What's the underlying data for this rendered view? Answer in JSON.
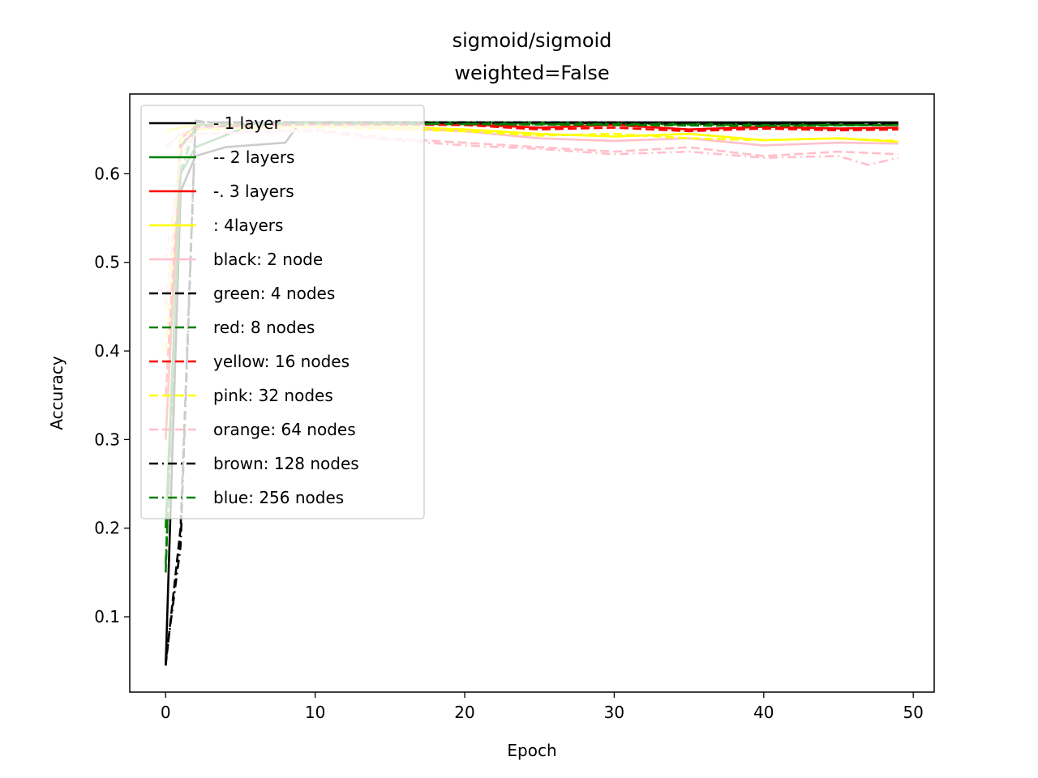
{
  "chart_data": {
    "type": "line",
    "title": "sigmoid/sigmoid",
    "subtitle": "weighted=False",
    "xlabel": "Epoch",
    "ylabel": "Accuracy",
    "xlim": [
      -2.4,
      51.4
    ],
    "ylim": [
      0.015,
      0.69
    ],
    "xticks": [
      0,
      10,
      20,
      30,
      40,
      50
    ],
    "yticks": [
      0.1,
      0.2,
      0.3,
      0.4,
      0.5,
      0.6
    ],
    "grid": false,
    "legend_position": "top-left",
    "legend": [
      {
        "label": "- 1 layer",
        "color": "#000000",
        "dash": "solid"
      },
      {
        "label": "-- 2 layers",
        "color": "#008000",
        "dash": "solid"
      },
      {
        "label": "-. 3 layers",
        "color": "#ff0000",
        "dash": "solid"
      },
      {
        "label": ": 4layers",
        "color": "#ffff00",
        "dash": "solid"
      },
      {
        "label": "black: 2 node",
        "color": "#ffc0cb",
        "dash": "solid"
      },
      {
        "label": "green: 4 nodes",
        "color": "#000000",
        "dash": "dashed"
      },
      {
        "label": "red: 8 nodes",
        "color": "#008000",
        "dash": "dashed"
      },
      {
        "label": "yellow: 16 nodes",
        "color": "#ff0000",
        "dash": "dashed"
      },
      {
        "label": "pink: 32 nodes",
        "color": "#ffff00",
        "dash": "dashed"
      },
      {
        "label": "orange: 64 nodes",
        "color": "#ffc0cb",
        "dash": "dashed"
      },
      {
        "label": "brown: 128 nodes",
        "color": "#000000",
        "dashdot": true,
        "dash": "dashdot"
      },
      {
        "label": "blue: 256 nodes",
        "color": "#008000",
        "dash": "dashdot"
      }
    ],
    "series": [
      {
        "color": "#000000",
        "dash": "solid",
        "x": [
          0,
          1,
          2,
          4,
          8,
          9,
          20,
          30,
          40,
          49
        ],
        "y": [
          0.045,
          0.58,
          0.62,
          0.63,
          0.635,
          0.658,
          0.658,
          0.658,
          0.658,
          0.658
        ]
      },
      {
        "color": "#008000",
        "dash": "solid",
        "x": [
          0,
          1,
          2,
          5,
          7,
          10,
          20,
          30,
          40,
          49
        ],
        "y": [
          0.2,
          0.6,
          0.63,
          0.65,
          0.657,
          0.658,
          0.658,
          0.657,
          0.656,
          0.655
        ]
      },
      {
        "color": "#ff0000",
        "dash": "solid",
        "x": [
          0,
          1,
          2,
          5,
          10,
          20,
          25,
          30,
          35,
          40,
          45,
          49
        ],
        "y": [
          0.3,
          0.63,
          0.65,
          0.656,
          0.657,
          0.656,
          0.652,
          0.655,
          0.65,
          0.653,
          0.651,
          0.652
        ]
      },
      {
        "color": "#ffff00",
        "dash": "solid",
        "x": [
          0,
          1,
          2,
          10,
          20,
          25,
          30,
          35,
          40,
          45,
          49
        ],
        "y": [
          0.648,
          0.652,
          0.655,
          0.656,
          0.65,
          0.645,
          0.642,
          0.645,
          0.638,
          0.64,
          0.636
        ]
      },
      {
        "color": "#ffc0cb",
        "dash": "solid",
        "x": [
          0,
          1,
          2,
          10,
          20,
          25,
          30,
          35,
          40,
          45,
          49
        ],
        "y": [
          0.63,
          0.645,
          0.652,
          0.655,
          0.648,
          0.64,
          0.637,
          0.64,
          0.632,
          0.635,
          0.634
        ]
      },
      {
        "color": "#000000",
        "dash": "dashed",
        "x": [
          0,
          1,
          2,
          3,
          10,
          20,
          30,
          40,
          49
        ],
        "y": [
          0.045,
          0.2,
          0.66,
          0.658,
          0.658,
          0.657,
          0.657,
          0.656,
          0.656
        ]
      },
      {
        "color": "#008000",
        "dash": "dashed",
        "x": [
          0,
          1,
          2,
          10,
          20,
          30,
          40,
          49
        ],
        "y": [
          0.15,
          0.63,
          0.655,
          0.658,
          0.656,
          0.655,
          0.654,
          0.655
        ]
      },
      {
        "color": "#ff0000",
        "dash": "dashed",
        "x": [
          0,
          1,
          2,
          10,
          20,
          25,
          30,
          35,
          40,
          45,
          49
        ],
        "y": [
          0.35,
          0.64,
          0.653,
          0.656,
          0.655,
          0.65,
          0.652,
          0.648,
          0.651,
          0.649,
          0.65
        ]
      },
      {
        "color": "#ffff00",
        "dash": "dashed",
        "x": [
          0,
          1,
          2,
          10,
          20,
          25,
          30,
          35,
          40,
          45,
          49
        ],
        "y": [
          0.4,
          0.64,
          0.65,
          0.653,
          0.648,
          0.643,
          0.645,
          0.64,
          0.638,
          0.64,
          0.637
        ]
      },
      {
        "color": "#ffc0cb",
        "dash": "dashed",
        "x": [
          0,
          1,
          2,
          10,
          15,
          20,
          25,
          30,
          35,
          40,
          45,
          49
        ],
        "y": [
          0.45,
          0.62,
          0.645,
          0.65,
          0.64,
          0.635,
          0.63,
          0.625,
          0.63,
          0.62,
          0.625,
          0.622
        ]
      },
      {
        "color": "#000000",
        "dash": "dashdot",
        "x": [
          0,
          1,
          2,
          10,
          20,
          30,
          40,
          49
        ],
        "y": [
          0.05,
          0.18,
          0.658,
          0.658,
          0.658,
          0.658,
          0.657,
          0.657
        ]
      },
      {
        "color": "#008000",
        "dash": "dashdot",
        "x": [
          0,
          1,
          2,
          10,
          20,
          30,
          40,
          49
        ],
        "y": [
          0.16,
          0.6,
          0.655,
          0.657,
          0.656,
          0.656,
          0.655,
          0.655
        ]
      },
      {
        "color": "#ffc0cb",
        "dash": "dashdot",
        "x": [
          0,
          1,
          2,
          10,
          15,
          20,
          25,
          30,
          35,
          40,
          45,
          47,
          49
        ],
        "y": [
          0.5,
          0.62,
          0.645,
          0.648,
          0.638,
          0.632,
          0.628,
          0.622,
          0.625,
          0.618,
          0.62,
          0.61,
          0.618
        ]
      }
    ]
  }
}
